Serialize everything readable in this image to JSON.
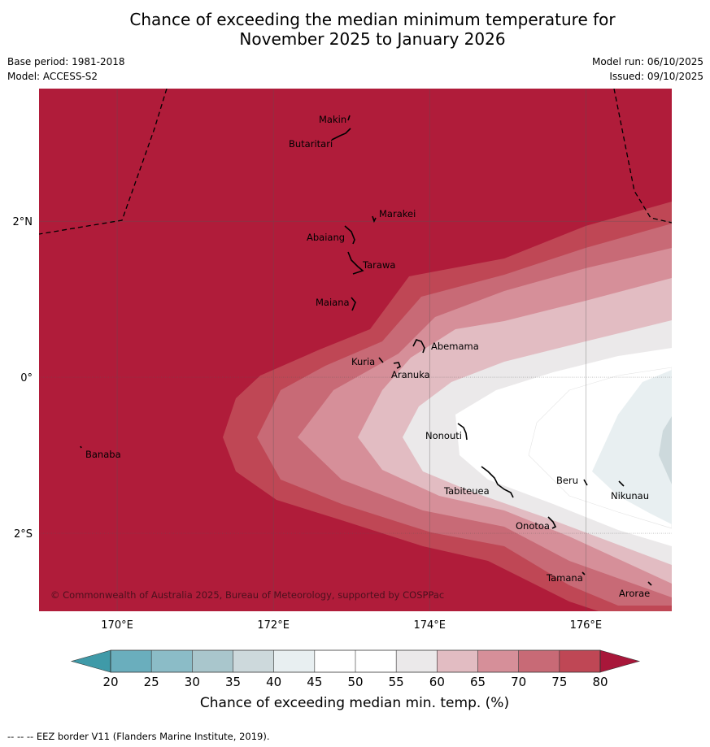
{
  "title": {
    "line1": "Chance of exceeding the median minimum temperature for",
    "line2": "November 2025 to January 2026"
  },
  "meta_left": {
    "base_period": "Base period: 1981-2018",
    "model": "Model: ACCESS-S2"
  },
  "meta_right": {
    "model_run": "Model run: 06/10/2025",
    "issued": "Issued: 09/10/2025"
  },
  "map": {
    "lon_range": [
      169,
      177.1
    ],
    "lat_range": [
      -3.0,
      3.7
    ],
    "lon_ticks": [
      {
        "value": 170,
        "label": "170°E"
      },
      {
        "value": 172,
        "label": "172°E"
      },
      {
        "value": 174,
        "label": "174°E"
      },
      {
        "value": 176,
        "label": "176°E"
      }
    ],
    "lat_ticks": [
      {
        "value": 2,
        "label": "2°N"
      },
      {
        "value": 0,
        "label": "0°"
      },
      {
        "value": -2,
        "label": "2°S"
      }
    ],
    "islands": [
      {
        "name": "Makin",
        "lon": 173.0,
        "lat": 3.3
      },
      {
        "name": "Butaritari",
        "lon": 172.9,
        "lat": 3.1
      },
      {
        "name": "Marakei",
        "lon": 173.3,
        "lat": 2.0
      },
      {
        "name": "Abaiang",
        "lon": 172.95,
        "lat": 1.85
      },
      {
        "name": "Tarawa",
        "lon": 173.0,
        "lat": 1.45
      },
      {
        "name": "Maiana",
        "lon": 173.0,
        "lat": 0.93
      },
      {
        "name": "Abemama",
        "lon": 173.85,
        "lat": 0.4
      },
      {
        "name": "Kuria",
        "lon": 173.4,
        "lat": 0.22
      },
      {
        "name": "Aranuka",
        "lon": 173.6,
        "lat": 0.17
      },
      {
        "name": "Banaba",
        "lon": 169.55,
        "lat": -0.87
      },
      {
        "name": "Nonouti",
        "lon": 174.4,
        "lat": -0.65
      },
      {
        "name": "Tabiteuea",
        "lon": 174.8,
        "lat": -1.3
      },
      {
        "name": "Beru",
        "lon": 176.0,
        "lat": -1.35
      },
      {
        "name": "Nikunau",
        "lon": 176.45,
        "lat": -1.35
      },
      {
        "name": "Onotoa",
        "lon": 175.55,
        "lat": -1.8
      },
      {
        "name": "Tamana",
        "lon": 175.98,
        "lat": -2.5
      },
      {
        "name": "Arorae",
        "lon": 176.8,
        "lat": -2.65
      }
    ],
    "copyright": "© Commonwealth of Australia 2025, Bureau of Meteorology, supported by COSPPac"
  },
  "legend": {
    "ticks": [
      "20",
      "25",
      "30",
      "35",
      "40",
      "45",
      "50",
      "55",
      "60",
      "65",
      "70",
      "75",
      "80"
    ],
    "label": "Chance of exceeding median min. temp. (%)",
    "under_color": "#3f9aa8",
    "over_color": "#a8173a",
    "colors": [
      "#6aaebd",
      "#8bbcc7",
      "#a9c6cc",
      "#cdd9dc",
      "#e8eff1",
      "#ffffff",
      "#ffffff",
      "#ebe9ea",
      "#e2bcc2",
      "#d68f99",
      "#c86a76",
      "#bf4755"
    ]
  },
  "footnote": "--  --  -- EEZ border V11 (Flanders Marine Institute, 2019)."
}
